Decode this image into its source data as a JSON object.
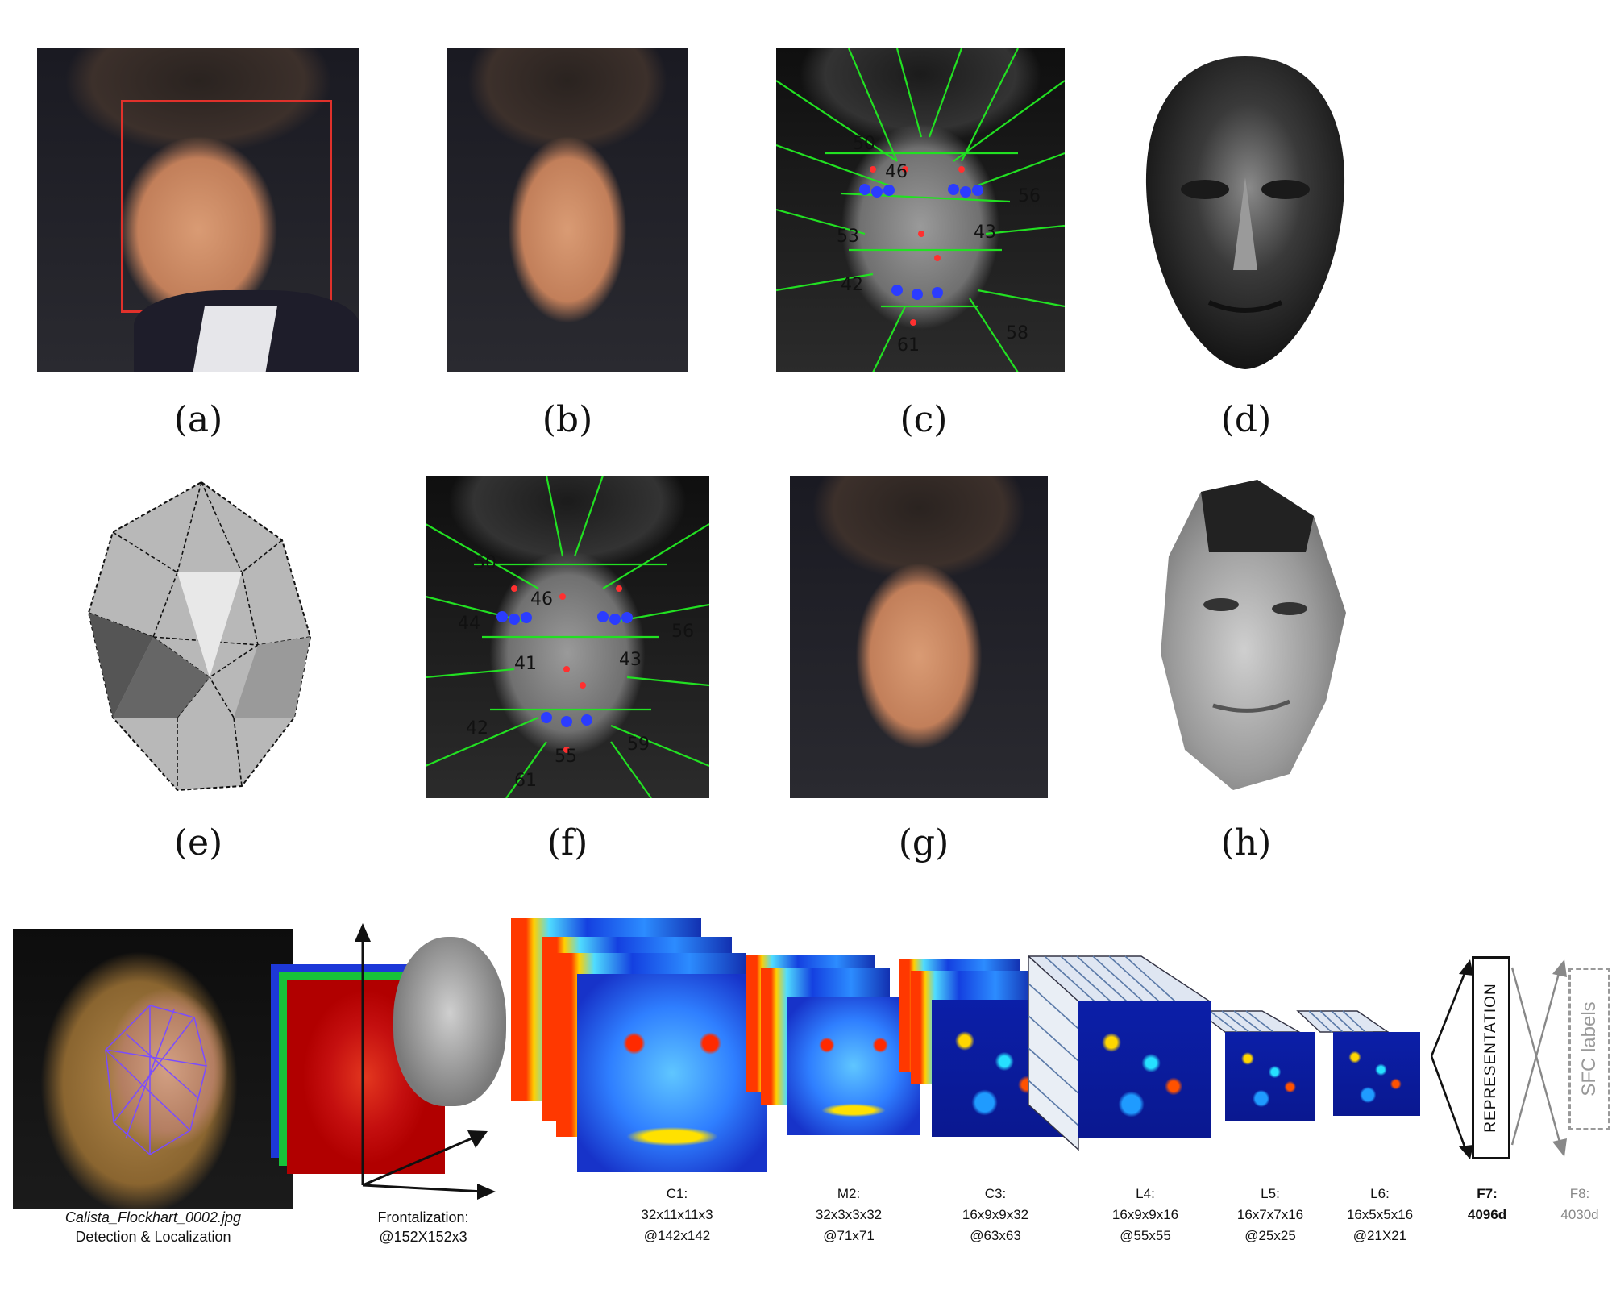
{
  "panels": {
    "a": {
      "caption": "(a)"
    },
    "b": {
      "caption": "(b)"
    },
    "c": {
      "caption": "(c)"
    },
    "d": {
      "caption": "(d)"
    },
    "e": {
      "caption": "(e)"
    },
    "f": {
      "caption": "(f)"
    },
    "g": {
      "caption": "(g)"
    },
    "h": {
      "caption": "(h)"
    }
  },
  "landmark_numbers": [
    "50",
    "46",
    "53",
    "43",
    "56",
    "42",
    "58",
    "61",
    "55",
    "59",
    "44",
    "41"
  ],
  "pipeline": {
    "input": {
      "filename": "Calista_Flockhart_0002.jpg",
      "stage": "Detection & Localization"
    },
    "frontalization": {
      "label": "Frontalization:",
      "size": "@152X152x3"
    },
    "layers": [
      {
        "name": "C1:",
        "filters": "32x11x11x3",
        "size": "@142x142"
      },
      {
        "name": "M2:",
        "filters": "32x3x3x32",
        "size": "@71x71"
      },
      {
        "name": "C3:",
        "filters": "16x9x9x32",
        "size": "@63x63"
      },
      {
        "name": "L4:",
        "filters": "16x9x9x16",
        "size": "@55x55"
      },
      {
        "name": "L5:",
        "filters": "16x7x7x16",
        "size": "@25x25"
      },
      {
        "name": "L6:",
        "filters": "16x5x5x16",
        "size": "@21X21"
      }
    ],
    "f7": {
      "name": "F7:",
      "dim": "4096d",
      "box_text": "REPRESENTATION"
    },
    "f8": {
      "name": "F8:",
      "dim": "4030d",
      "box_text": "SFC labels"
    }
  }
}
